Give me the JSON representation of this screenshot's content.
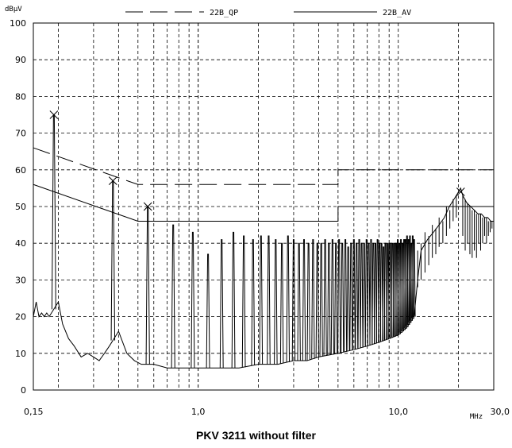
{
  "caption": "PKV 3211 without filter",
  "chart_data": {
    "type": "line",
    "ylabel": "dBµV",
    "xlabel": "MHz",
    "xscale": "log",
    "xlim": [
      0.15,
      30.0
    ],
    "ylim": [
      0,
      100
    ],
    "yticks": [
      0,
      10,
      20,
      30,
      40,
      50,
      60,
      70,
      80,
      90,
      100
    ],
    "ytick_labels": [
      "0",
      "10",
      "20",
      "30",
      "40",
      "50",
      "60",
      "70",
      "80",
      "90",
      "100"
    ],
    "xtick_labels": [
      {
        "value": 0.15,
        "label": "0,15"
      },
      {
        "value": 1.0,
        "label": "1,0"
      },
      {
        "value": 10.0,
        "label": "10,0"
      },
      {
        "value": 30.0,
        "label": "30,0"
      }
    ],
    "grid": true,
    "legend": [
      {
        "name": "22B_QP",
        "style": "dashed"
      },
      {
        "name": "22B_AV",
        "style": "solid"
      }
    ],
    "limit_lines": [
      {
        "name": "22B_QP",
        "style": "dashed",
        "points": [
          [
            0.15,
            66
          ],
          [
            0.5,
            56
          ],
          [
            5.0,
            56
          ],
          [
            5.0,
            60
          ],
          [
            30.0,
            60
          ]
        ]
      },
      {
        "name": "22B_AV",
        "style": "solid",
        "points": [
          [
            0.15,
            56
          ],
          [
            0.5,
            46
          ],
          [
            5.0,
            46
          ],
          [
            5.0,
            50
          ],
          [
            30.0,
            50
          ]
        ]
      }
    ],
    "peaks": [
      {
        "x": 0.19,
        "y": 75
      },
      {
        "x": 0.375,
        "y": 57
      },
      {
        "x": 0.56,
        "y": 50
      },
      {
        "x": 20.5,
        "y": 54
      }
    ],
    "spectral_lines": [
      {
        "x": 0.19,
        "y": 75
      },
      {
        "x": 0.375,
        "y": 57
      },
      {
        "x": 0.56,
        "y": 50
      },
      {
        "x": 0.75,
        "y": 45
      },
      {
        "x": 0.94,
        "y": 43
      },
      {
        "x": 1.12,
        "y": 37
      },
      {
        "x": 1.31,
        "y": 41
      },
      {
        "x": 1.5,
        "y": 43
      },
      {
        "x": 1.69,
        "y": 42
      },
      {
        "x": 1.88,
        "y": 41
      },
      {
        "x": 2.06,
        "y": 42
      },
      {
        "x": 2.25,
        "y": 42
      },
      {
        "x": 2.44,
        "y": 41
      },
      {
        "x": 2.62,
        "y": 40
      },
      {
        "x": 2.81,
        "y": 42
      },
      {
        "x": 3.0,
        "y": 41
      },
      {
        "x": 3.19,
        "y": 40
      },
      {
        "x": 3.38,
        "y": 41
      },
      {
        "x": 3.56,
        "y": 40
      },
      {
        "x": 3.75,
        "y": 41
      },
      {
        "x": 3.94,
        "y": 40
      },
      {
        "x": 4.12,
        "y": 40
      },
      {
        "x": 4.31,
        "y": 41
      },
      {
        "x": 4.5,
        "y": 40
      },
      {
        "x": 4.69,
        "y": 41
      },
      {
        "x": 4.88,
        "y": 40
      },
      {
        "x": 5.06,
        "y": 41
      },
      {
        "x": 5.25,
        "y": 40
      },
      {
        "x": 5.44,
        "y": 41
      },
      {
        "x": 5.62,
        "y": 39
      },
      {
        "x": 5.81,
        "y": 40
      },
      {
        "x": 6.0,
        "y": 41
      },
      {
        "x": 6.19,
        "y": 40
      },
      {
        "x": 6.38,
        "y": 41
      },
      {
        "x": 6.56,
        "y": 40
      },
      {
        "x": 6.75,
        "y": 40
      },
      {
        "x": 6.94,
        "y": 41
      },
      {
        "x": 7.12,
        "y": 40
      },
      {
        "x": 7.31,
        "y": 41
      },
      {
        "x": 7.5,
        "y": 40
      },
      {
        "x": 7.69,
        "y": 40
      },
      {
        "x": 7.88,
        "y": 41
      },
      {
        "x": 8.06,
        "y": 40
      },
      {
        "x": 8.25,
        "y": 40
      },
      {
        "x": 8.44,
        "y": 39
      },
      {
        "x": 8.62,
        "y": 40
      },
      {
        "x": 8.81,
        "y": 40
      },
      {
        "x": 9.0,
        "y": 40
      },
      {
        "x": 9.19,
        "y": 40
      },
      {
        "x": 9.38,
        "y": 40
      },
      {
        "x": 9.56,
        "y": 40
      },
      {
        "x": 9.75,
        "y": 40
      },
      {
        "x": 9.94,
        "y": 41
      },
      {
        "x": 10.12,
        "y": 40
      },
      {
        "x": 10.31,
        "y": 41
      },
      {
        "x": 10.5,
        "y": 40
      },
      {
        "x": 10.69,
        "y": 41
      },
      {
        "x": 10.88,
        "y": 41
      },
      {
        "x": 11.06,
        "y": 42
      },
      {
        "x": 11.25,
        "y": 41
      },
      {
        "x": 11.44,
        "y": 42
      },
      {
        "x": 11.62,
        "y": 40
      },
      {
        "x": 11.81,
        "y": 42
      },
      {
        "x": 12.0,
        "y": 41
      }
    ],
    "floor_trace": [
      [
        0.15,
        20
      ],
      [
        0.155,
        24
      ],
      [
        0.16,
        20
      ],
      [
        0.165,
        21
      ],
      [
        0.17,
        20
      ],
      [
        0.175,
        21
      ],
      [
        0.18,
        20
      ],
      [
        0.2,
        24
      ],
      [
        0.21,
        18
      ],
      [
        0.225,
        14
      ],
      [
        0.24,
        12
      ],
      [
        0.26,
        9
      ],
      [
        0.28,
        10
      ],
      [
        0.3,
        9
      ],
      [
        0.32,
        8
      ],
      [
        0.34,
        10
      ],
      [
        0.36,
        12
      ],
      [
        0.4,
        16
      ],
      [
        0.44,
        10
      ],
      [
        0.48,
        8
      ],
      [
        0.52,
        7
      ],
      [
        0.6,
        7
      ],
      [
        0.7,
        6
      ],
      [
        0.8,
        6
      ],
      [
        1.0,
        6
      ],
      [
        1.3,
        6
      ],
      [
        1.6,
        6
      ],
      [
        2.0,
        7
      ],
      [
        2.5,
        7
      ],
      [
        3.0,
        8
      ],
      [
        3.5,
        8
      ],
      [
        4.0,
        9
      ],
      [
        5.0,
        10
      ],
      [
        6.0,
        11
      ],
      [
        7.0,
        12
      ],
      [
        8.0,
        13
      ],
      [
        9.0,
        14
      ],
      [
        10.0,
        15
      ],
      [
        11.0,
        17
      ],
      [
        12.0,
        20
      ],
      [
        12.5,
        30
      ],
      [
        13.0,
        38
      ],
      [
        14.0,
        41
      ],
      [
        15.0,
        43
      ],
      [
        16.0,
        45
      ],
      [
        17.0,
        47
      ],
      [
        18.0,
        50
      ],
      [
        19.0,
        52
      ],
      [
        20.0,
        54
      ],
      [
        20.5,
        55
      ],
      [
        21.0,
        53
      ],
      [
        22.0,
        51
      ],
      [
        23.0,
        50
      ],
      [
        24.0,
        49
      ],
      [
        25.0,
        48
      ],
      [
        26.0,
        48
      ],
      [
        27.0,
        47
      ],
      [
        28.0,
        47
      ],
      [
        29.0,
        46
      ],
      [
        30.0,
        46
      ]
    ],
    "hf_lines": [
      {
        "x": 12.5,
        "y": 38,
        "low": 28
      },
      {
        "x": 13.0,
        "y": 40,
        "low": 30
      },
      {
        "x": 13.6,
        "y": 43,
        "low": 32
      },
      {
        "x": 14.2,
        "y": 42,
        "low": 34
      },
      {
        "x": 14.8,
        "y": 45,
        "low": 36
      },
      {
        "x": 15.4,
        "y": 44,
        "low": 37
      },
      {
        "x": 16.0,
        "y": 47,
        "low": 39
      },
      {
        "x": 16.7,
        "y": 46,
        "low": 40
      },
      {
        "x": 17.4,
        "y": 50,
        "low": 42
      },
      {
        "x": 18.1,
        "y": 49,
        "low": 44
      },
      {
        "x": 18.8,
        "y": 52,
        "low": 46
      },
      {
        "x": 19.5,
        "y": 53,
        "low": 47
      },
      {
        "x": 21.0,
        "y": 53,
        "low": 42
      },
      {
        "x": 21.6,
        "y": 52,
        "low": 38
      },
      {
        "x": 22.2,
        "y": 51,
        "low": 40
      },
      {
        "x": 22.8,
        "y": 50,
        "low": 37
      },
      {
        "x": 23.4,
        "y": 49,
        "low": 36
      },
      {
        "x": 24.0,
        "y": 49,
        "low": 38
      },
      {
        "x": 24.6,
        "y": 48,
        "low": 36
      },
      {
        "x": 25.2,
        "y": 48,
        "low": 40
      },
      {
        "x": 25.8,
        "y": 48,
        "low": 38
      },
      {
        "x": 26.4,
        "y": 47,
        "low": 40
      },
      {
        "x": 27.0,
        "y": 47,
        "low": 42
      },
      {
        "x": 27.6,
        "y": 47,
        "low": 40
      },
      {
        "x": 28.2,
        "y": 46,
        "low": 42
      },
      {
        "x": 28.8,
        "y": 46,
        "low": 43
      },
      {
        "x": 29.4,
        "y": 46,
        "low": 44
      }
    ]
  }
}
